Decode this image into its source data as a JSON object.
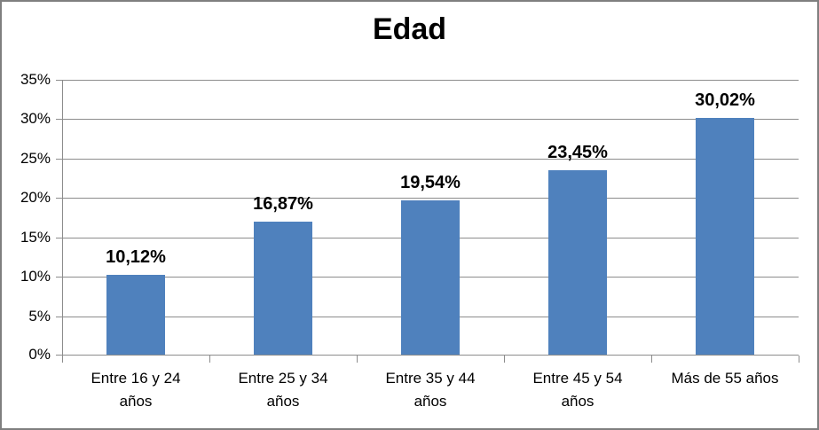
{
  "window": {
    "background": "#ffffff",
    "border_color": "#7f7f7f"
  },
  "chart_data": {
    "type": "bar",
    "title": "Edad",
    "categories": [
      "Entre 16 y 24 años",
      "Entre 25 y 34 años",
      "Entre 35 y 44 años",
      "Entre 45 y 54 años",
      "Más de 55 años"
    ],
    "category_display": [
      "Entre 16 y 24\naños",
      "Entre 25 y 34\naños",
      "Entre 35 y 44\naños",
      "Entre 45 y 54\naños",
      "Más de 55 años"
    ],
    "values": [
      10.12,
      16.87,
      19.54,
      23.45,
      30.02
    ],
    "data_labels": [
      "10,12%",
      "16,87%",
      "19,54%",
      "23,45%",
      "30,02%"
    ],
    "xlabel": "",
    "ylabel": "",
    "ylim": [
      0,
      35
    ],
    "y_tick_step": 5,
    "y_tick_labels": [
      "0%",
      "5%",
      "10%",
      "15%",
      "20%",
      "25%",
      "30%",
      "35%"
    ],
    "grid": true,
    "legend": "none",
    "bar_color": "#4f81bd",
    "grid_color": "#8c8c8c",
    "axis_color": "#8c8c8c",
    "text_color": "#000000"
  }
}
